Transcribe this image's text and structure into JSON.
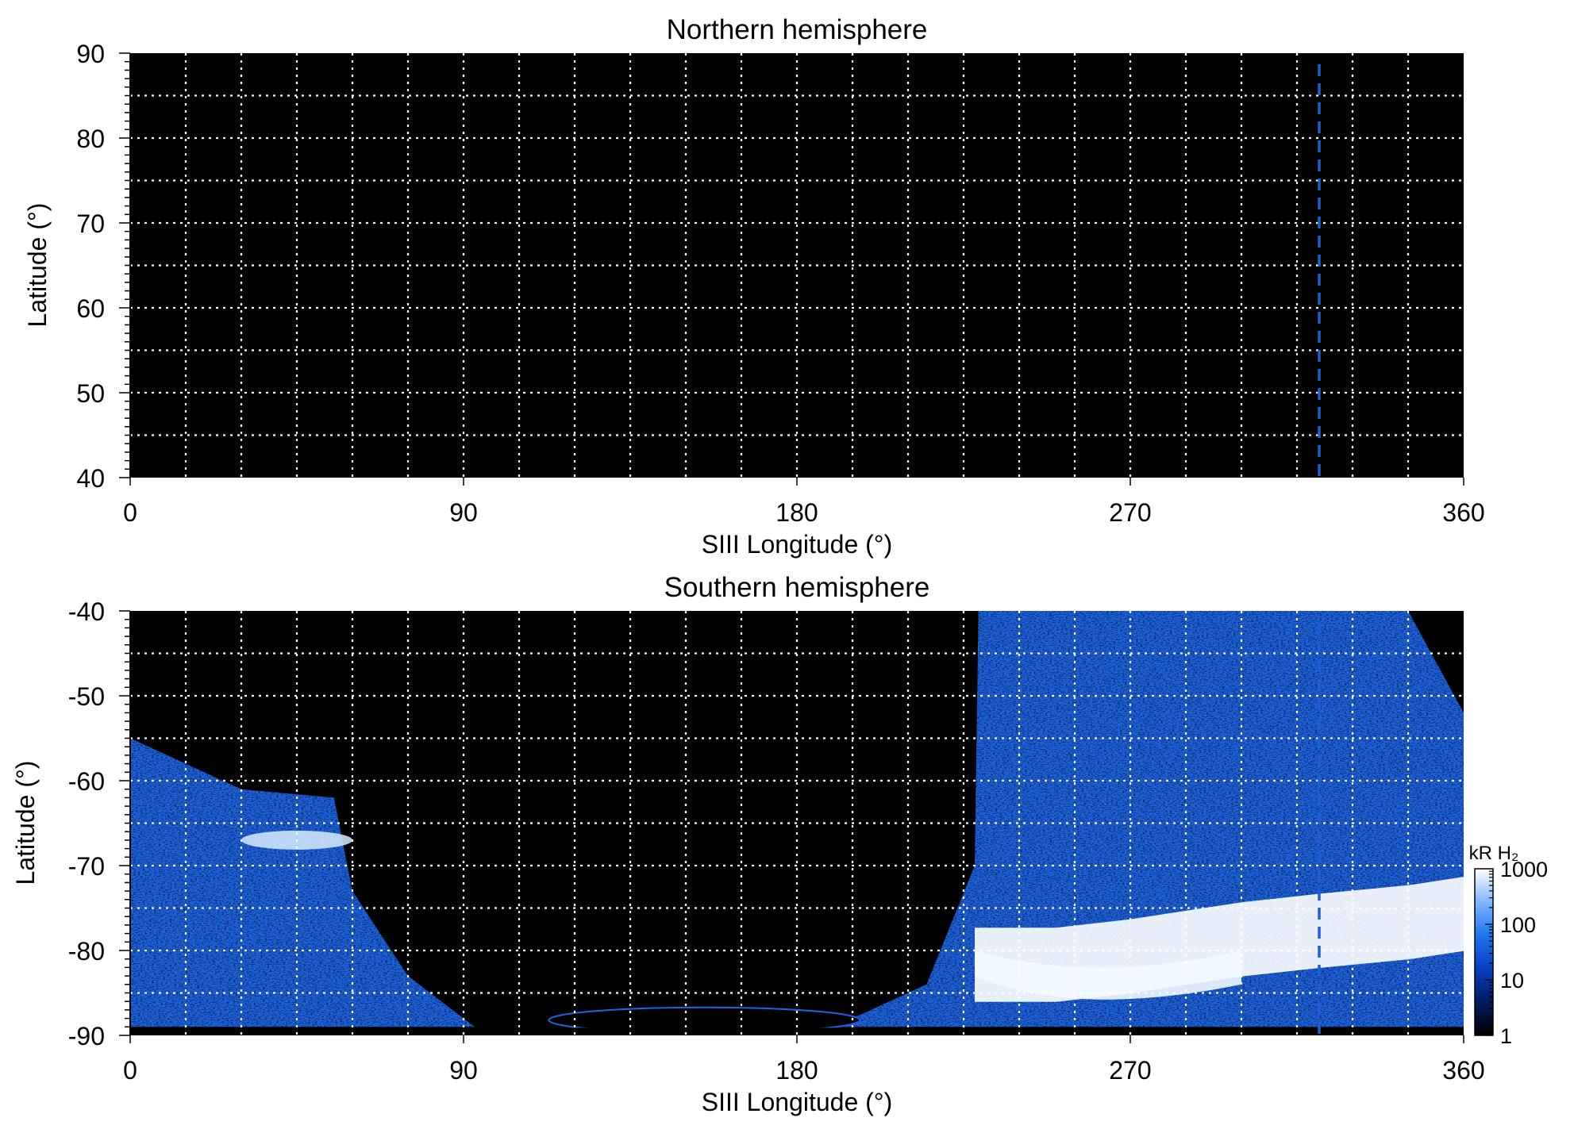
{
  "chart_data": [
    {
      "type": "heatmap",
      "title": "Northern hemisphere",
      "xlabel": "SIII Longitude (°)",
      "ylabel": "Latitude (°)",
      "xlim": [
        0,
        360
      ],
      "ylim": [
        40,
        90
      ],
      "xticks": [
        0,
        90,
        180,
        270,
        360
      ],
      "yticks": [
        40,
        50,
        60,
        70,
        80,
        90
      ],
      "x_minor_grid_step": 15,
      "y_minor_grid_step": 5,
      "grid": true,
      "reference_line_longitude": 321,
      "colors": {
        "background": "#000000",
        "grid": "#ffffff",
        "reference_line": "#1f5fd6"
      }
    },
    {
      "type": "heatmap",
      "title": "Southern hemisphere",
      "xlabel": "SIII Longitude (°)",
      "ylabel": "Latitude (°)",
      "xlim": [
        0,
        360
      ],
      "ylim": [
        -90,
        -40
      ],
      "xticks": [
        0,
        90,
        180,
        270,
        360
      ],
      "yticks": [
        -90,
        -80,
        -70,
        -60,
        -50,
        -40
      ],
      "x_minor_grid_step": 15,
      "y_minor_grid_step": 5,
      "grid": true,
      "reference_line_longitude": 321,
      "emission_regions": [
        {
          "name": "west",
          "lon_start": 0,
          "lon_end": 93,
          "edge_latitude": [
            [
              0,
              -55
            ],
            [
              30,
              -61
            ],
            [
              55,
              -62
            ],
            [
              60,
              -73
            ],
            [
              75,
              -83
            ],
            [
              93,
              -89
            ]
          ]
        },
        {
          "name": "east",
          "lon_start": 190,
          "lon_end": 360,
          "edge_latitude": [
            [
              190,
              -89
            ],
            [
              215,
              -84
            ],
            [
              228,
              -70
            ],
            [
              229,
              -40
            ],
            [
              345,
              -40
            ],
            [
              360,
              -52
            ]
          ]
        }
      ],
      "bright_oval": [
        [
          228,
          -79
        ],
        [
          250,
          -79
        ],
        [
          270,
          -78
        ],
        [
          300,
          -76
        ],
        [
          321,
          -75
        ],
        [
          345,
          -74
        ],
        [
          360,
          -73
        ]
      ],
      "colorbar": {
        "label": "kR H₂",
        "scale": "log",
        "range": [
          1,
          1000
        ],
        "ticks": [
          "1",
          "10",
          "100",
          "1000"
        ],
        "colors": [
          "#000000",
          "#001a5c",
          "#0a3ec2",
          "#1e74f0",
          "#7fb6ff",
          "#ffffff"
        ]
      },
      "colors": {
        "background": "#000000",
        "grid": "#ffffff",
        "reference_line": "#1f5fd6"
      }
    }
  ]
}
